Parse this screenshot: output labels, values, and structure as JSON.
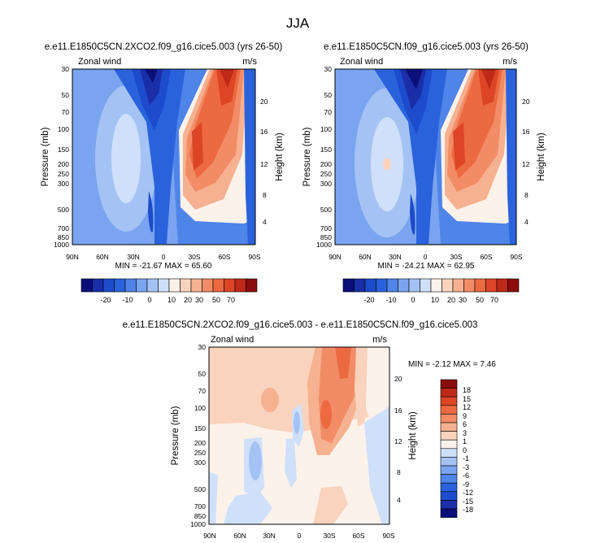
{
  "page_title": "JJA",
  "chart_data": [
    {
      "type": "heatmap",
      "id": "p1",
      "title": "e.e11.E1850C5CN.2XCO2.f09_g16.cice5.003 (yrs 26-50)",
      "left_label": "Zonal wind",
      "right_label": "m/s",
      "xlabel": "",
      "ylabel": "Pressure (mb)",
      "ylabel_right": "Height (km)",
      "x_ticks": [
        "90N",
        "60N",
        "30N",
        "0",
        "30S",
        "60S",
        "90S"
      ],
      "y_ticks": [
        "30",
        "50",
        "70",
        "100",
        "150",
        "200",
        "250",
        "300",
        "500",
        "700",
        "850",
        "1000"
      ],
      "height_ticks": [
        "20",
        "16",
        "12",
        "8",
        "4"
      ],
      "stats": "MIN = -21.67  MAX = 65.60",
      "levels": [
        -22,
        -20,
        -16,
        -12,
        -8,
        -4,
        0,
        4,
        8,
        16,
        24,
        32,
        40,
        48,
        56,
        64
      ]
    },
    {
      "type": "heatmap",
      "id": "p2",
      "title": "e.e11.E1850C5CN.f09_g16.cice5.003 (yrs 26-50)",
      "left_label": "Zonal wind",
      "right_label": "m/s",
      "xlabel": "",
      "ylabel": "Pressure (mb)",
      "ylabel_right": "Height (km)",
      "x_ticks": [
        "90N",
        "60N",
        "30N",
        "0",
        "30S",
        "60S",
        "90S"
      ],
      "y_ticks": [
        "30",
        "50",
        "70",
        "100",
        "150",
        "200",
        "250",
        "300",
        "500",
        "700",
        "850",
        "1000"
      ],
      "height_ticks": [
        "20",
        "16",
        "12",
        "8",
        "4"
      ],
      "stats": "MIN = -24.21  MAX = 62.95",
      "levels": [
        -22,
        -20,
        -16,
        -12,
        -8,
        -4,
        0,
        4,
        8,
        16,
        24,
        32,
        40,
        48,
        56,
        64
      ]
    },
    {
      "type": "heatmap",
      "id": "p3",
      "title": "e.e11.E1850C5CN.2XCO2.f09_g16.cice5.003 - e.e11.E1850C5CN.f09_g16.cice5.003",
      "left_label": "Zonal wind",
      "right_label": "m/s",
      "xlabel": "",
      "ylabel": "Pressure (mb)",
      "ylabel_right": "Height (km)",
      "x_ticks": [
        "90N",
        "60N",
        "30N",
        "0",
        "30S",
        "60S",
        "90S"
      ],
      "y_ticks": [
        "30",
        "50",
        "70",
        "100",
        "150",
        "200",
        "250",
        "300",
        "500",
        "700",
        "850",
        "1000"
      ],
      "height_ticks": [
        "20",
        "16",
        "12",
        "8",
        "4"
      ],
      "stats": "MIN = -2.12  MAX =  7.46",
      "levels": [
        -18,
        -15,
        -12,
        -9,
        -6,
        -3,
        -1,
        0,
        1,
        3,
        6,
        9,
        12,
        15,
        18
      ]
    }
  ],
  "colorbars": {
    "top": {
      "labels": [
        "-20",
        "-10",
        "0",
        "10",
        "20",
        "30",
        "50",
        "70"
      ],
      "colors": [
        "#0a0f7a",
        "#1a2ea8",
        "#1c4ccc",
        "#2a62dc",
        "#4f84e8",
        "#7aa4ef",
        "#a4c3f4",
        "#cfe0fb",
        "#fdf2ea",
        "#f9d3bd",
        "#f6b190",
        "#f28c66",
        "#ec6a42",
        "#dc4526",
        "#be2918",
        "#8a0c0c"
      ]
    },
    "diff": {
      "labels": [
        "18",
        "15",
        "12",
        "9",
        "6",
        "3",
        "1",
        "0",
        "-1",
        "-3",
        "-6",
        "-9",
        "-12",
        "-15",
        "-18"
      ],
      "colors": [
        "#8a0c0c",
        "#be2918",
        "#dc4526",
        "#ec6a42",
        "#f28c66",
        "#f6b190",
        "#f9d3bd",
        "#fdf2ea",
        "#cfe0fb",
        "#a4c3f4",
        "#7aa4ef",
        "#4f84e8",
        "#2a62dc",
        "#1c4ccc",
        "#1a2ea8",
        "#0a0f7a"
      ]
    }
  }
}
